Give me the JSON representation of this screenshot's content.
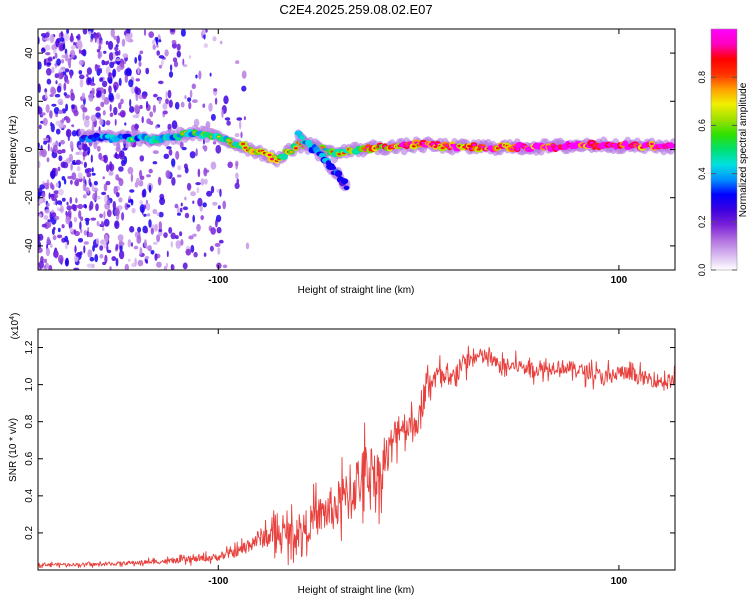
{
  "title": "C2E4.2025.259.08.02.E07",
  "colorbar": {
    "label": "Normalized spectral amplitude",
    "ticks": [
      "0.0",
      "0.2",
      "0.4",
      "0.6",
      "0.8"
    ],
    "tick_values": [
      0.0,
      0.2,
      0.4,
      0.6,
      0.8
    ],
    "range": [
      0,
      1
    ],
    "colors": [
      "#ffffff",
      "#d8b8f0",
      "#b070e0",
      "#7a20d8",
      "#3b00e0",
      "#0000ff",
      "#0090ff",
      "#00e0e0",
      "#00e070",
      "#30e000",
      "#a0e000",
      "#f0f000",
      "#ffa000",
      "#ff3000",
      "#ff0000",
      "#ff00c0",
      "#ff00ff"
    ]
  },
  "chart_data": [
    {
      "type": "heatmap",
      "title": "C2E4.2025.259.08.02.E07",
      "xlabel": "Height of straight line (km)",
      "ylabel": "Frequency (Hz)",
      "xlim": [
        -190,
        128
      ],
      "ylim": [
        -50,
        50
      ],
      "xticks": [
        -100,
        100
      ],
      "yticks": [
        -40,
        -20,
        0,
        20,
        40
      ],
      "xtick_labels": [
        "-100",
        "100"
      ],
      "ytick_labels": [
        "-40",
        "-20",
        "0",
        "20",
        "40"
      ],
      "ridge": {
        "x": [
          -165,
          -150,
          -130,
          -112,
          -100,
          -90,
          -80,
          -70,
          -60,
          -50,
          -42,
          -38,
          -30,
          -20,
          -10,
          0,
          20,
          60,
          90,
          128
        ],
        "freq": [
          5,
          5,
          4,
          7,
          5,
          2,
          -1,
          -4,
          2,
          1,
          -2,
          -1,
          0,
          1,
          1,
          2,
          1,
          1,
          2,
          1
        ],
        "amplitude": [
          0.35,
          0.4,
          0.45,
          0.5,
          0.55,
          0.5,
          0.65,
          0.6,
          0.6,
          0.55,
          0.5,
          0.55,
          0.6,
          0.75,
          0.8,
          0.85,
          0.9,
          0.95,
          0.95,
          0.95
        ]
      },
      "branch": {
        "x": [
          -60,
          -52,
          -46,
          -40,
          -36
        ],
        "freq": [
          6,
          0,
          -5,
          -11,
          -15
        ],
        "amplitude": [
          0.4,
          0.45,
          0.35,
          0.3,
          0.25
        ]
      },
      "noise_region_x": [
        -190,
        -100
      ]
    },
    {
      "type": "line",
      "title": "",
      "xlabel": "Height of straight line (km)",
      "ylabel": "SNR (10 * v/v)",
      "y_multiplier": "(x10",
      "y_multiplier_exp": "4",
      "y_multiplier_close": ")",
      "xlim": [
        -190,
        128
      ],
      "ylim": [
        0,
        13000
      ],
      "xticks": [
        -100,
        100
      ],
      "yticks": [
        2000,
        4000,
        6000,
        8000,
        10000,
        12000
      ],
      "xtick_labels": [
        "-100",
        "100"
      ],
      "ytick_labels": [
        "0.2",
        "0.4",
        "0.6",
        "0.8",
        "1.0",
        "1.2"
      ],
      "series": [
        {
          "name": "SNR",
          "color": "#e8403c",
          "x": [
            -190,
            -160,
            -120,
            -100,
            -90,
            -80,
            -70,
            -60,
            -50,
            -40,
            -35,
            -30,
            -25,
            -20,
            -15,
            -10,
            -5,
            0,
            5,
            10,
            15,
            20,
            25,
            30,
            35,
            40,
            50,
            60,
            70,
            80,
            90,
            95,
            100,
            110,
            120,
            128
          ],
          "values": [
            300,
            300,
            500,
            700,
            1000,
            1700,
            1900,
            2000,
            2900,
            3500,
            4000,
            4800,
            5500,
            5100,
            6300,
            7800,
            7800,
            8000,
            10200,
            10500,
            10000,
            11000,
            11300,
            11500,
            11500,
            11000,
            11000,
            10800,
            11000,
            10800,
            10500,
            10300,
            10700,
            10400,
            10200,
            10200
          ],
          "spread": [
            150,
            150,
            250,
            350,
            500,
            900,
            1300,
            1500,
            1800,
            2400,
            2600,
            2700,
            2700,
            2300,
            2000,
            1600,
            1400,
            1300,
            1200,
            1100,
            1000,
            900,
            900,
            800,
            800,
            700,
            700,
            700,
            700,
            700,
            700,
            1000,
            700,
            700,
            700,
            700
          ]
        }
      ]
    }
  ]
}
